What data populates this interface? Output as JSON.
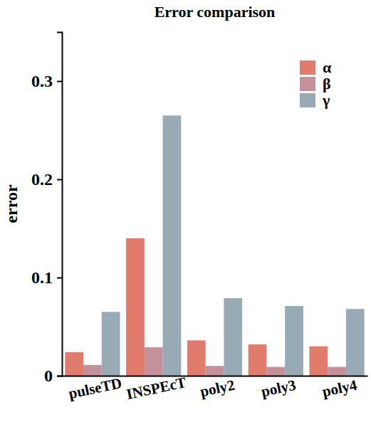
{
  "chart_data": {
    "type": "bar",
    "title": "Error comparison",
    "y_label": "error",
    "categories": [
      "pulseTD",
      "INSPEcT",
      "poly2",
      "poly3",
      "poly4"
    ],
    "series": [
      {
        "name": "α",
        "color": "#e07b6e",
        "values": [
          0.024,
          0.14,
          0.036,
          0.032,
          0.03
        ]
      },
      {
        "name": "β",
        "color": "#c4909a",
        "values": [
          0.011,
          0.029,
          0.01,
          0.009,
          0.009
        ]
      },
      {
        "name": "γ",
        "color": "#97aab5",
        "values": [
          0.065,
          0.265,
          0.079,
          0.071,
          0.068
        ]
      }
    ],
    "ylim": [
      0,
      0.35
    ],
    "yticks": [
      0,
      0.1,
      0.2,
      0.3
    ],
    "grid": false,
    "legend": "top-right"
  }
}
